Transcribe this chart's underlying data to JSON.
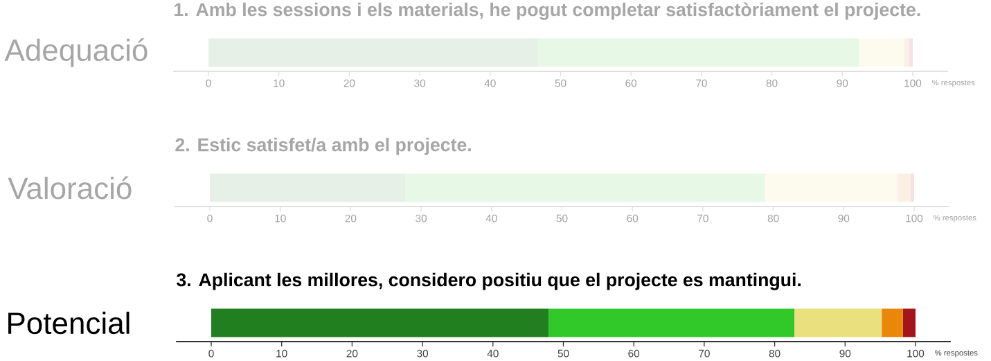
{
  "chart_data": [
    {
      "type": "bar",
      "orientation": "horizontal",
      "stacked": true,
      "title": "1. Amb les sessions i els materials, he pogut completar satisfactòriament el projecte.",
      "xlabel": "% respostes",
      "categories": [
        "Adequació"
      ],
      "xlim": [
        -5,
        105
      ],
      "xticks": [
        0,
        10,
        20,
        30,
        40,
        50,
        60,
        70,
        80,
        90,
        100
      ],
      "series": [
        {
          "color": "#e6f0e6",
          "values": [
            46.8
          ]
        },
        {
          "color": "#e8f8e6",
          "values": [
            45.6
          ]
        },
        {
          "color": "#fdfbee",
          "values": [
            6.4
          ]
        },
        {
          "color": "#fcefe3",
          "values": [
            0.7
          ]
        },
        {
          "color": "#f5e3e3",
          "values": [
            0.5
          ]
        }
      ]
    },
    {
      "type": "bar",
      "orientation": "horizontal",
      "stacked": true,
      "title": "2. Estic satisfet/a amb el projecte.",
      "xlabel": "% respostes",
      "categories": [
        "Valoració"
      ],
      "xlim": [
        -5,
        105
      ],
      "xticks": [
        0,
        10,
        20,
        30,
        40,
        50,
        60,
        70,
        80,
        90,
        100
      ],
      "series": [
        {
          "color": "#e6f0e6",
          "values": [
            27.8
          ]
        },
        {
          "color": "#e8f8e6",
          "values": [
            51.0
          ]
        },
        {
          "color": "#fdfbee",
          "values": [
            18.8
          ]
        },
        {
          "color": "#fcefe3",
          "values": [
            1.9
          ]
        },
        {
          "color": "#f5e3e3",
          "values": [
            0.5
          ]
        }
      ]
    },
    {
      "type": "bar",
      "orientation": "horizontal",
      "stacked": true,
      "title": "3. Aplicant les millores, considero positiu que el projecte es mantingui.",
      "xlabel": "% respostes",
      "categories": [
        "Potencial"
      ],
      "xlim": [
        -5,
        105
      ],
      "xticks": [
        0,
        10,
        20,
        30,
        40,
        50,
        60,
        70,
        80,
        90,
        100
      ],
      "series": [
        {
          "color": "#217f1f",
          "values": [
            47.9
          ]
        },
        {
          "color": "#31c92a",
          "values": [
            34.9
          ]
        },
        {
          "color": "#ebe07e",
          "values": [
            12.4
          ]
        },
        {
          "color": "#e8870a",
          "values": [
            3.0
          ]
        },
        {
          "color": "#a3141b",
          "values": [
            1.8
          ]
        }
      ]
    }
  ]
}
